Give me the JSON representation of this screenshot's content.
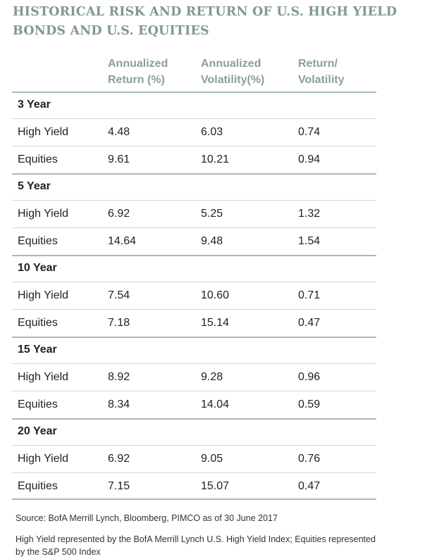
{
  "title": "HISTORICAL RISK AND RETURN OF U.S. HIGH YIELD BONDS AND U.S. EQUITIES",
  "columns": {
    "return": [
      "Annualized",
      "Return (%)"
    ],
    "volatility": [
      "Annualized",
      "Volatility(%)"
    ],
    "ratio": [
      "Return/",
      "Volatility"
    ]
  },
  "groups": [
    {
      "label": "3 Year",
      "rows": [
        {
          "name": "High Yield",
          "ret": "4.48",
          "vol": "6.03",
          "ratio": "0.74"
        },
        {
          "name": "Equities",
          "ret": "9.61",
          "vol": "10.21",
          "ratio": "0.94"
        }
      ]
    },
    {
      "label": "5 Year",
      "rows": [
        {
          "name": "High Yield",
          "ret": "6.92",
          "vol": "5.25",
          "ratio": "1.32"
        },
        {
          "name": "Equities",
          "ret": "14.64",
          "vol": "9.48",
          "ratio": "1.54"
        }
      ]
    },
    {
      "label": "10 Year",
      "rows": [
        {
          "name": "High Yield",
          "ret": "7.54",
          "vol": "10.60",
          "ratio": "0.71"
        },
        {
          "name": "Equities",
          "ret": "7.18",
          "vol": "15.14",
          "ratio": "0.47"
        }
      ]
    },
    {
      "label": "15 Year",
      "rows": [
        {
          "name": "High Yield",
          "ret": "8.92",
          "vol": "9.28",
          "ratio": "0.96"
        },
        {
          "name": "Equities",
          "ret": "8.34",
          "vol": "14.04",
          "ratio": "0.59"
        }
      ]
    },
    {
      "label": "20 Year",
      "rows": [
        {
          "name": "High Yield",
          "ret": "6.92",
          "vol": "9.05",
          "ratio": "0.76"
        },
        {
          "name": "Equities",
          "ret": "7.15",
          "vol": "15.07",
          "ratio": "0.47"
        }
      ]
    }
  ],
  "footer": {
    "source": "Source: BofA Merrill Lynch, Bloomberg, PIMCO as of 30 June 2017",
    "note": "High Yield represented by the BofA Merrill Lynch U.S. High Yield Index; Equities represented by the S&P 500 Index"
  },
  "colors": {
    "title": "#7f9a89",
    "header": "#8aa194",
    "rule": "#a8bcb0"
  },
  "chart_data": {
    "type": "table",
    "title": "HISTORICAL RISK AND RETURN OF U.S. HIGH YIELD BONDS AND U.S. EQUITIES",
    "columns": [
      "Annualized Return (%)",
      "Annualized Volatility(%)",
      "Return/ Volatility"
    ],
    "rows": [
      [
        "3 Year",
        "High Yield",
        4.48,
        6.03,
        0.74
      ],
      [
        "3 Year",
        "Equities",
        9.61,
        10.21,
        0.94
      ],
      [
        "5 Year",
        "High Yield",
        6.92,
        5.25,
        1.32
      ],
      [
        "5 Year",
        "Equities",
        14.64,
        9.48,
        1.54
      ],
      [
        "10 Year",
        "High Yield",
        7.54,
        10.6,
        0.71
      ],
      [
        "10 Year",
        "Equities",
        7.18,
        15.14,
        0.47
      ],
      [
        "15 Year",
        "High Yield",
        8.92,
        9.28,
        0.96
      ],
      [
        "15 Year",
        "Equities",
        8.34,
        14.04,
        0.59
      ],
      [
        "20 Year",
        "High Yield",
        6.92,
        9.05,
        0.76
      ],
      [
        "20 Year",
        "Equities",
        7.15,
        15.07,
        0.47
      ]
    ]
  }
}
